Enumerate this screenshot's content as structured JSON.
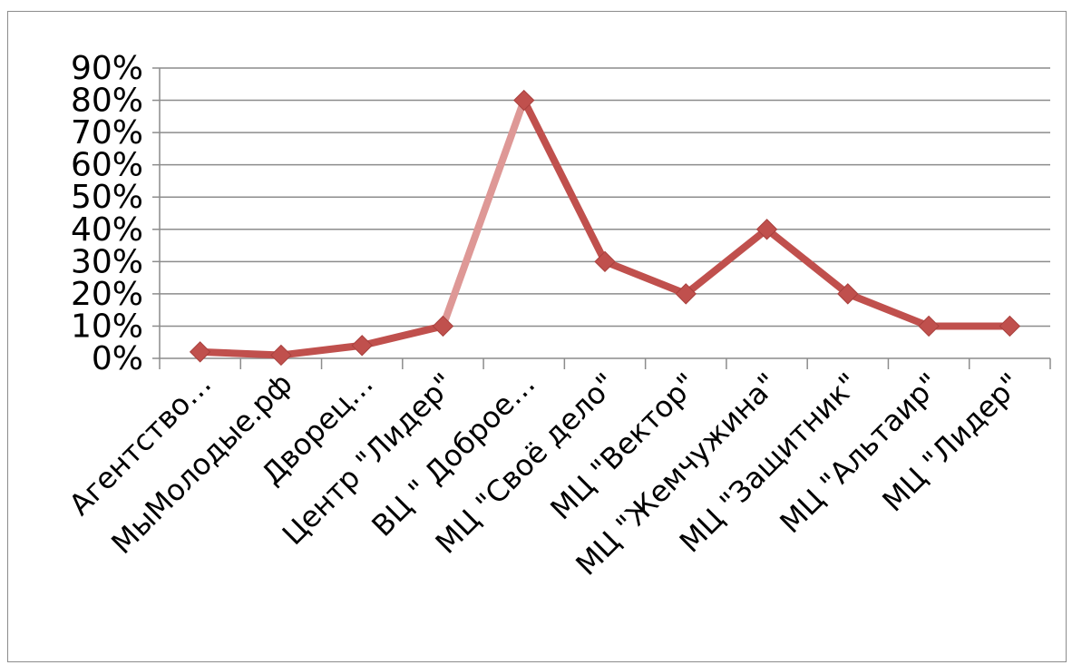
{
  "chart_data": {
    "type": "line",
    "title": "",
    "xlabel": "",
    "ylabel": "",
    "ylim": [
      0,
      0.9
    ],
    "y_ticks": [
      {
        "value": 0,
        "label": "0%"
      },
      {
        "value": 0.1,
        "label": "10%"
      },
      {
        "value": 0.2,
        "label": "20%"
      },
      {
        "value": 0.3,
        "label": "30%"
      },
      {
        "value": 0.4,
        "label": "40%"
      },
      {
        "value": 0.5,
        "label": "50%"
      },
      {
        "value": 0.6,
        "label": "60%"
      },
      {
        "value": 0.7,
        "label": "70%"
      },
      {
        "value": 0.8,
        "label": "80%"
      },
      {
        "value": 0.9,
        "label": "90%"
      }
    ],
    "grid": true,
    "legend": "none",
    "categories": [
      "Агентство…",
      "МыМолодые.рф",
      "Дворец…",
      "Центр \"Лидер\"",
      "ВЦ \" Доброе…",
      "МЦ \"Своё дело\"",
      "МЦ \"Вектор\"",
      "МЦ \"Жемчужина\"",
      "МЦ \"Защитник\"",
      "МЦ \"Альтаир\"",
      "МЦ \"Лидер\""
    ],
    "series": [
      {
        "values": [
          0.02,
          0.01,
          0.04,
          0.1,
          0.8,
          0.3,
          0.2,
          0.4,
          0.2,
          0.1,
          0.1
        ],
        "color": "#c0504d",
        "highlight_segment_color": "#de9896"
      }
    ]
  }
}
